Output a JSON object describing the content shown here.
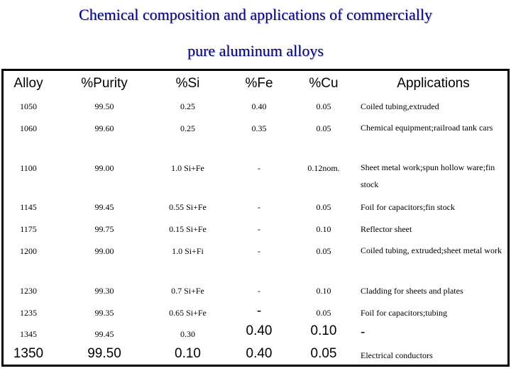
{
  "title": {
    "line1": "Chemical composition and applications of commercially",
    "line2": "pure aluminum alloys"
  },
  "table": {
    "headers": [
      "Alloy",
      "%Purity",
      "%Si",
      "%Fe",
      "%Cu",
      "Applications"
    ],
    "rows": [
      [
        "1050",
        "99.50",
        "0.25",
        "0.40",
        "0.05",
        "Coiled tubing,extruded"
      ],
      [
        "1060",
        "99.60",
        "0.25",
        "0.35",
        "0.05",
        "Chemical equipment;railroad tank cars"
      ],
      [
        "1100",
        "99.00",
        "1.0 Si+Fe",
        "-",
        "0.12nom.",
        "Sheet metal work;spun hollow ware;fin stock"
      ],
      [
        "1145",
        "99.45",
        "0.55 Si+Fe",
        "-",
        "0.05",
        "Foil for capacitors;fin stock"
      ],
      [
        "1175",
        "99.75",
        "0.15 Si+Fe",
        "-",
        "0.10",
        "Reflector sheet"
      ],
      [
        "1200",
        "99.00",
        "1.0 Si+Fi",
        "-",
        "0.05",
        "Coiled tubing, extruded;sheet metal work"
      ],
      [
        "1230",
        "99.30",
        "0.7 Si+Fe",
        "-",
        "0.10",
        "Cladding for sheets and plates"
      ],
      [
        "1235",
        "99.35",
        "0.65 Si+Fe",
        "-",
        "0.05",
        "Foil for capacitors;tubing"
      ],
      [
        "1345",
        "99.45",
        "0.30",
        "0.40",
        "0.10",
        "-"
      ],
      [
        "1350",
        "99.50",
        "0.10",
        "0.40",
        "0.05",
        "Electrical conductors"
      ]
    ]
  }
}
